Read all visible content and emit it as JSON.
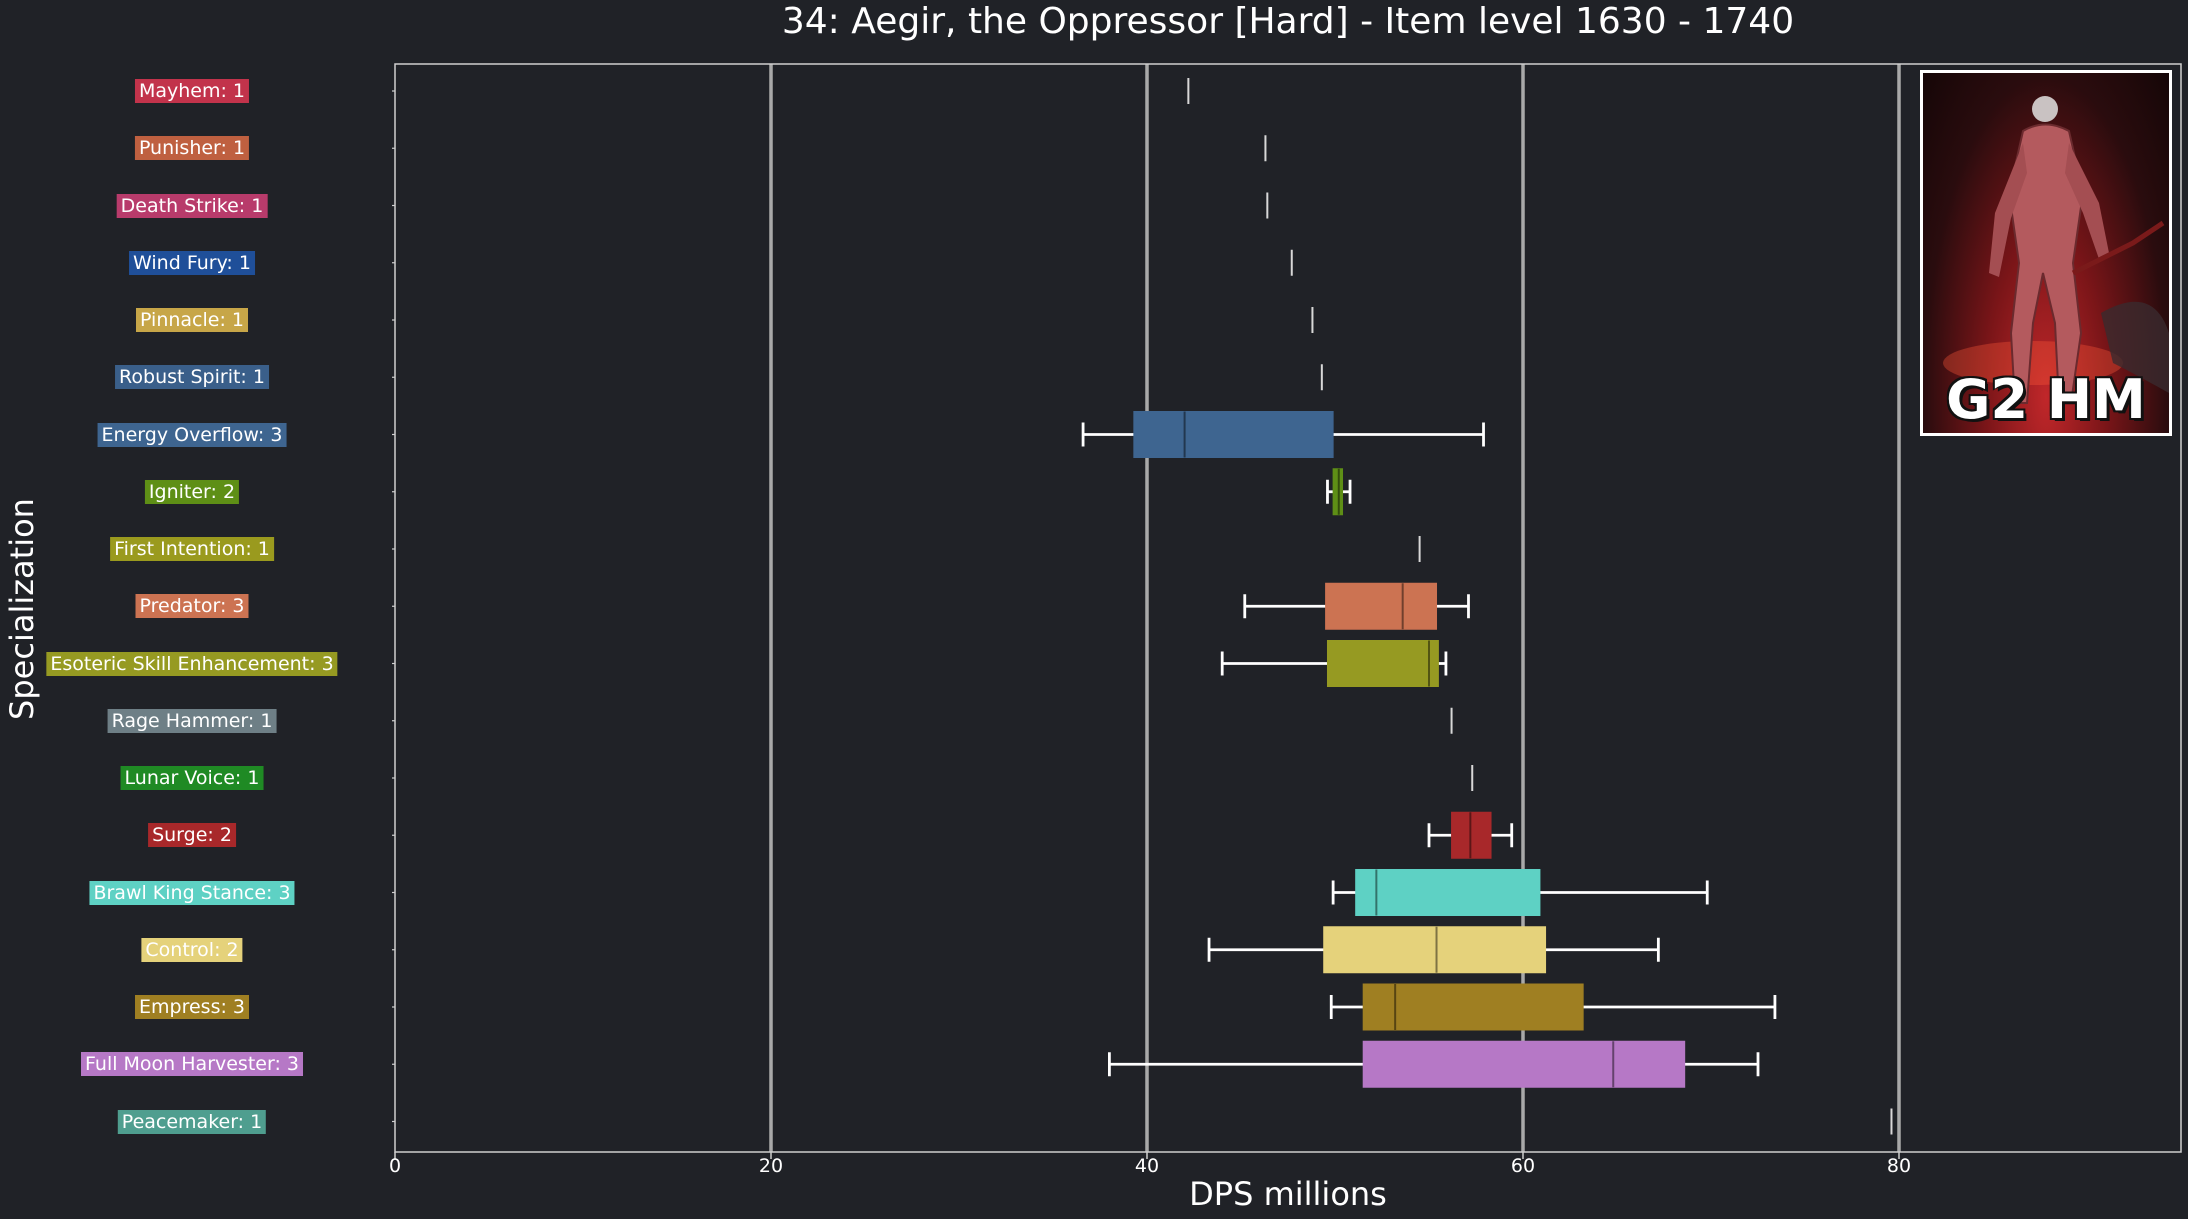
{
  "chart_data": {
    "type": "boxplot",
    "title": "34: Aegir, the Oppressor [Hard] - Item level 1630 - 1740",
    "xlabel": "DPS millions",
    "ylabel": "Specialization",
    "xlim": [
      0,
      95
    ],
    "xticks": [
      0,
      20,
      40,
      60,
      80
    ],
    "grid": "vertical lines at 20, 40, 60, 80",
    "series": [
      {
        "label": "Mayhem: 1",
        "color": "#c2334b",
        "min": 42.2,
        "q1": 42.2,
        "median": 42.2,
        "q3": 42.2,
        "max": 42.2
      },
      {
        "label": "Punisher: 1",
        "color": "#bf6040",
        "min": 46.3,
        "q1": 46.3,
        "median": 46.3,
        "q3": 46.3,
        "max": 46.3
      },
      {
        "label": "Death Strike: 1",
        "color": "#b83b6b",
        "min": 46.4,
        "q1": 46.4,
        "median": 46.4,
        "q3": 46.4,
        "max": 46.4
      },
      {
        "label": "Wind Fury: 1",
        "color": "#1f4f99",
        "min": 47.7,
        "q1": 47.7,
        "median": 47.7,
        "q3": 47.7,
        "max": 47.7
      },
      {
        "label": "Pinnacle: 1",
        "color": "#c7a648",
        "min": 48.8,
        "q1": 48.8,
        "median": 48.8,
        "q3": 48.8,
        "max": 48.8
      },
      {
        "label": "Robust Spirit: 1",
        "color": "#3a5f8a",
        "min": 49.3,
        "q1": 49.3,
        "median": 49.3,
        "q3": 49.3,
        "max": 49.3
      },
      {
        "label": "Energy Overflow: 3",
        "color": "#3e6590",
        "min": 36.6,
        "q1": 39.3,
        "median": 42.0,
        "q3": 49.9,
        "max": 57.9
      },
      {
        "label": "Igniter: 2",
        "color": "#5e8f16",
        "min": 49.6,
        "q1": 49.9,
        "median": 50.2,
        "q3": 50.4,
        "max": 50.8
      },
      {
        "label": "First Intention: 1",
        "color": "#9a9a1e",
        "min": 54.5,
        "q1": 54.5,
        "median": 54.5,
        "q3": 54.5,
        "max": 54.5
      },
      {
        "label": "Predator: 3",
        "color": "#cc7352",
        "min": 45.2,
        "q1": 49.5,
        "median": 53.6,
        "q3": 55.4,
        "max": 57.1
      },
      {
        "label": "Esoteric Skill Enhancement: 3",
        "color": "#969a22",
        "min": 44.0,
        "q1": 49.6,
        "median": 55.0,
        "q3": 55.5,
        "max": 55.9
      },
      {
        "label": "Rage Hammer: 1",
        "color": "#6e7f86",
        "min": 56.2,
        "q1": 56.2,
        "median": 56.2,
        "q3": 56.2,
        "max": 56.2
      },
      {
        "label": "Lunar Voice: 1",
        "color": "#1f8a24",
        "min": 57.3,
        "q1": 57.3,
        "median": 57.3,
        "q3": 57.3,
        "max": 57.3
      },
      {
        "label": "Surge: 2",
        "color": "#a8282a",
        "min": 55.0,
        "q1": 56.2,
        "median": 57.2,
        "q3": 58.3,
        "max": 59.4
      },
      {
        "label": "Brawl King Stance: 3",
        "color": "#5ed1c4",
        "min": 49.9,
        "q1": 51.1,
        "median": 52.2,
        "q3": 60.9,
        "max": 69.8
      },
      {
        "label": "Control: 2",
        "color": "#e5d27b",
        "min": 43.3,
        "q1": 49.4,
        "median": 55.4,
        "q3": 61.2,
        "max": 67.2
      },
      {
        "label": "Empress: 3",
        "color": "#9f7f22",
        "min": 49.8,
        "q1": 51.5,
        "median": 53.2,
        "q3": 63.2,
        "max": 73.4
      },
      {
        "label": "Full Moon Harvester: 3",
        "color": "#b678c6",
        "min": 38.0,
        "q1": 51.5,
        "median": 64.8,
        "q3": 68.6,
        "max": 72.5
      },
      {
        "label": "Peacemaker: 1",
        "color": "#4f9e8f",
        "min": 79.6,
        "q1": 79.6,
        "median": 79.6,
        "q3": 79.6,
        "max": 79.6
      }
    ]
  },
  "boss_image": {
    "badge": "G2 HM"
  }
}
